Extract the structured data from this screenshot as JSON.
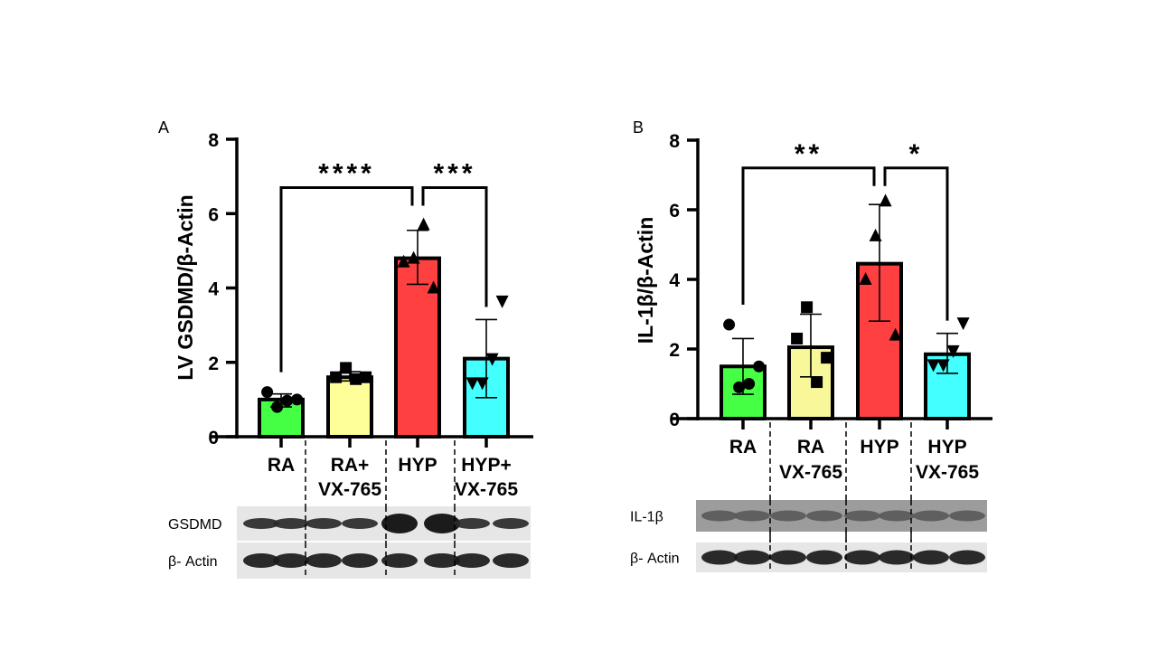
{
  "chart_data": [
    {
      "type": "bar",
      "panel_label": "A",
      "ylabel": "LV GSDMD/β-Actin",
      "ylim": [
        0,
        8
      ],
      "yticks": [
        "0",
        "2",
        "4",
        "6",
        "8"
      ],
      "categories": [
        "RA",
        "RA+\nVX-765",
        "HYP",
        "HYP+\nVX-765"
      ],
      "colors": [
        "#44ff44",
        "#ffff99",
        "#ff4040",
        "#44ffff"
      ],
      "markers": [
        "circle",
        "square",
        "triangle-up",
        "triangle-down"
      ],
      "values": [
        1.0,
        1.6,
        4.8,
        2.1
      ],
      "error_low": [
        0.8,
        1.5,
        4.1,
        1.05
      ],
      "error_high": [
        1.15,
        1.75,
        5.55,
        3.15
      ],
      "points": [
        [
          1.2,
          1.0,
          0.97,
          0.8
        ],
        [
          1.85,
          1.6,
          1.6,
          1.55
        ],
        [
          5.7,
          4.8,
          4.7,
          4.0
        ],
        [
          3.65,
          2.1,
          1.45,
          1.45
        ]
      ],
      "comparisons": [
        {
          "from": 0,
          "to": 2,
          "label": "****",
          "y": 6.7
        },
        {
          "from": 2,
          "to": 3,
          "label": "***",
          "y": 6.7
        }
      ],
      "blot_rows": [
        "GSDMD",
        "β- Actin"
      ]
    },
    {
      "type": "bar",
      "panel_label": "B",
      "ylabel": "IL-1β/β-Actin",
      "ylim": [
        0,
        8
      ],
      "yticks": [
        "0",
        "2",
        "4",
        "6",
        "8"
      ],
      "categories": [
        "RA",
        "RA\nVX-765",
        "HYP",
        "HYP\nVX-765"
      ],
      "colors": [
        "#44ff44",
        "#f8f89a",
        "#ff4040",
        "#44ffff"
      ],
      "markers": [
        "circle",
        "square",
        "triangle-up",
        "triangle-down"
      ],
      "values": [
        1.5,
        2.05,
        4.45,
        1.85
      ],
      "error_low": [
        0.7,
        1.2,
        2.8,
        1.3
      ],
      "error_high": [
        2.3,
        3.0,
        6.15,
        2.45
      ],
      "points": [
        [
          2.7,
          1.5,
          1.0,
          0.9
        ],
        [
          3.2,
          2.3,
          1.75,
          1.05
        ],
        [
          6.25,
          5.25,
          4.0,
          2.4
        ],
        [
          2.75,
          1.95,
          1.55,
          1.55
        ]
      ],
      "comparisons": [
        {
          "from": 0,
          "to": 2,
          "label": "**",
          "y": 7.2
        },
        {
          "from": 2,
          "to": 3,
          "label": "*",
          "y": 7.2
        }
      ],
      "blot_rows": [
        "IL-1β",
        "β- Actin"
      ]
    }
  ]
}
